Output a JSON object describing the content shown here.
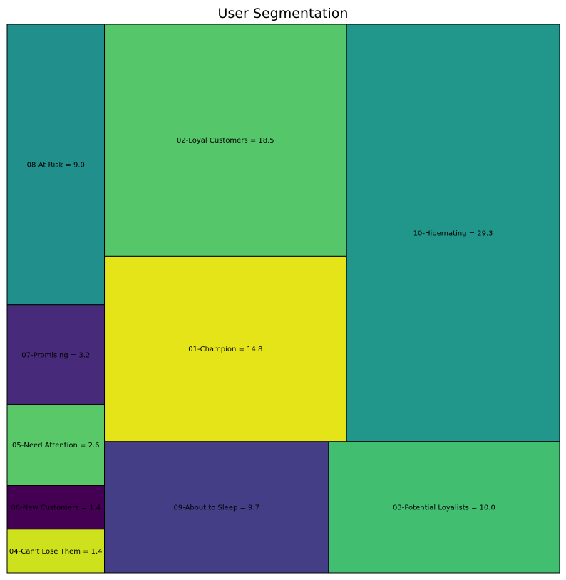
{
  "chart_data": {
    "type": "treemap",
    "title": "User Segmentation",
    "segments": [
      {
        "name": "08-At Risk",
        "value": 9.0,
        "label": "08-At Risk = 9.0",
        "color": "#21908c"
      },
      {
        "name": "07-Promising",
        "value": 3.2,
        "label": "07-Promising = 3.2",
        "color": "#472a7a"
      },
      {
        "name": "05-Need Attention",
        "value": 2.6,
        "label": "05-Need Attention = 2.6",
        "color": "#58c868"
      },
      {
        "name": "06-New Customers",
        "value": 1.4,
        "label": "06-New Customers = 1.4",
        "color": "#440154"
      },
      {
        "name": "04-Can't Lose Them",
        "value": 1.4,
        "label": "04-Can't Lose Them = 1.4",
        "color": "#cde11d"
      },
      {
        "name": "02-Loyal Customers",
        "value": 18.5,
        "label": "02-Loyal Customers = 18.5",
        "color": "#56c66b"
      },
      {
        "name": "01-Champion",
        "value": 14.8,
        "label": "01-Champion = 14.8",
        "color": "#e5e419"
      },
      {
        "name": "10-Hibernating",
        "value": 29.3,
        "label": "10-Hibernating = 29.3",
        "color": "#21968b"
      },
      {
        "name": "09-About to Sleep",
        "value": 9.7,
        "label": "09-About to Sleep = 9.7",
        "color": "#433e85"
      },
      {
        "name": "03-Potential Loyalists",
        "value": 10.0,
        "label": "03-Potential Loyalists = 10.0",
        "color": "#42be71"
      }
    ]
  }
}
